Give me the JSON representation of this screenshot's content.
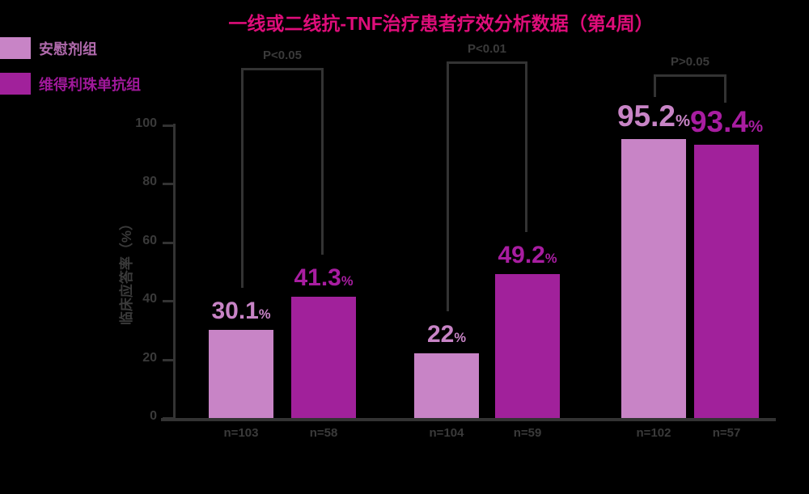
{
  "title": "一线或二线抗-TNF治疗患者疗效分析数据（第4周）",
  "colors": {
    "background": "#000000",
    "bar_light": "#c884c6",
    "bar_dark": "#a1219b",
    "title_text": "#df0d7a",
    "label_light": "#c884c6",
    "label_dark": "#a81da1",
    "axis": "#333333",
    "muted_text": "#3a3a3a",
    "legend_light_text": "#b06aac",
    "legend_dark_text": "#a0189a"
  },
  "legend": {
    "items": [
      {
        "label": "安慰剂组"
      },
      {
        "label": "维得利珠单抗组"
      }
    ]
  },
  "chart_data": {
    "type": "bar",
    "title": "一线或二线抗-TNF治疗患者疗效分析数据（第4周）",
    "ylabel": "临床应答率（%）",
    "xlabel": "",
    "ylim": [
      0,
      100
    ],
    "yticks": [
      0,
      20,
      40,
      60,
      80,
      100
    ],
    "grid": false,
    "legend_position": "top-left",
    "series": [
      {
        "name": "安慰剂组",
        "values": [
          30.1,
          22,
          95.2
        ],
        "value_labels": [
          "30.1%",
          "22%",
          "95.2%"
        ]
      },
      {
        "name": "维得利珠单抗组",
        "values": [
          41.3,
          49.2,
          93.4
        ],
        "value_labels": [
          "41.3%",
          "49.2%",
          "93.4%"
        ]
      }
    ],
    "categories": [
      [
        "n=103",
        "n=58"
      ],
      [
        "n=104",
        "n=59"
      ],
      [
        "n=102",
        "n=57"
      ]
    ],
    "significance_brackets": [
      "P<0.05",
      "P<0.01",
      "P>0.05"
    ]
  }
}
